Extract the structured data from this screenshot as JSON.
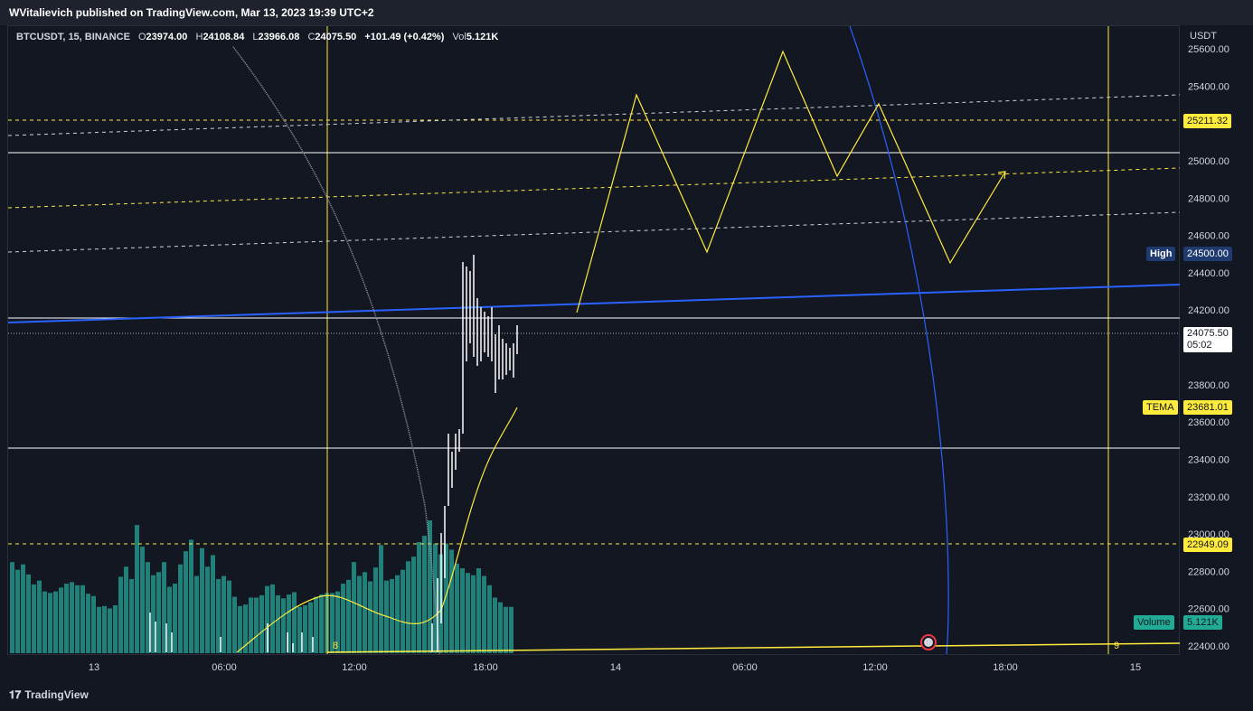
{
  "header": {
    "publisher": "WVitalievich published on TradingView.com, Mar 13, 2023 19:39 UTC+2"
  },
  "legend": {
    "symbol": "BTCUSDT, 15, BINANCE",
    "open_key": "O",
    "open": "23974.00",
    "high_key": "H",
    "high": "24108.84",
    "low_key": "L",
    "low": "23966.08",
    "close_key": "C",
    "close": "24075.50",
    "change": "+101.49 (+0.42%)",
    "vol_key": "Vol",
    "vol": "5.121K"
  },
  "axis": {
    "unit": "USDT",
    "price_ticks": [
      "25600.00",
      "25400.00",
      "25000.00",
      "24800.00",
      "24600.00",
      "24400.00",
      "24200.00",
      "23800.00",
      "23600.00",
      "23400.00",
      "23200.00",
      "23000.00",
      "22800.00",
      "22600.00",
      "22400.00"
    ],
    "time_ticks": [
      "13",
      "06:00",
      "12:00",
      "18:00",
      "14",
      "06:00",
      "12:00",
      "18:00",
      "15"
    ]
  },
  "labels": {
    "level_upper": "25211.32",
    "high_label": "High",
    "high_value": "24500.00",
    "last_price": "24075.50",
    "countdown": "05:02",
    "tema_label": "TEMA",
    "tema_value": "23681.01",
    "level_lower": "22949.09",
    "volume_label": "Volume",
    "volume_value": "5.121K",
    "count_8": "8",
    "count_9": "9"
  },
  "footer": {
    "brand": "TradingView"
  },
  "colors": {
    "background": "#131722",
    "yellow": "#ffeb3b",
    "blue": "#2962ff",
    "volume": "#26a69a",
    "candle": "#ffffff",
    "high_pill": "#1e3a6e",
    "volume_pill": "#22ab94"
  },
  "chart_data": {
    "type": "candlestick",
    "symbol": "BTCUSDT",
    "interval": "15",
    "ylim": [
      22350,
      25720
    ],
    "y_ticks": [
      25600,
      25400,
      25000,
      24800,
      24600,
      24400,
      24200,
      23800,
      23600,
      23400,
      23200,
      23000,
      22800,
      22600,
      22400
    ],
    "x_ticks": [
      "13",
      "06:00",
      "12:00",
      "18:00",
      "14",
      "06:00",
      "12:00",
      "18:00",
      "15"
    ],
    "horizontal_levels": [
      {
        "value": 25211.32,
        "style": "dashed",
        "color": "yellow"
      },
      {
        "value": 25050,
        "style": "solid",
        "color": "white"
      },
      {
        "value": 24160,
        "style": "solid",
        "color": "white"
      },
      {
        "value": 23450,
        "style": "solid",
        "color": "white"
      },
      {
        "value": 22949.09,
        "style": "dashed",
        "color": "yellow"
      },
      {
        "value": 24075.5,
        "style": "dotted",
        "color": "white"
      }
    ],
    "projected_zigzag": [
      24200,
      25350,
      24500,
      25590,
      24910,
      25310,
      24450,
      24940
    ],
    "candle_closes": [
      24120,
      24070,
      24080,
      24000,
      23950,
      24030,
      23980,
      23960,
      23930,
      23980,
      24000,
      24010,
      24075.5
    ],
    "volume_bars": [
      1180,
      1080,
      1150,
      1020,
      890,
      940,
      800,
      780,
      800,
      850,
      900,
      920,
      880,
      880,
      770,
      740,
      600,
      610,
      580,
      620,
      990,
      1120,
      960,
      1660,
      1380,
      1180,
      1010,
      1050,
      1180,
      860,
      900,
      1150,
      1320,
      1470,
      1000,
      1360,
      1120,
      1270,
      960,
      1000,
      940,
      730,
      610,
      630,
      720,
      720,
      750,
      870,
      890,
      750,
      710,
      760,
      790,
      600,
      620,
      660,
      730,
      760,
      780,
      780,
      800,
      900,
      950,
      1180,
      1000,
      1050,
      930,
      1110,
      1400,
      940,
      960,
      1010,
      1080,
      1190,
      1250,
      1440,
      1520,
      1720,
      1420,
      1280,
      1420,
      1340,
      1160,
      1100,
      1040,
      1010,
      1100,
      1000,
      880,
      720,
      660,
      600,
      600
    ]
  }
}
